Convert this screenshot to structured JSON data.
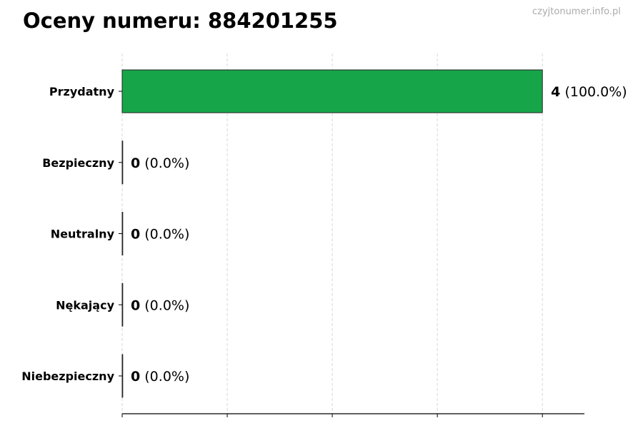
{
  "title": "Oceny numeru: 884201255",
  "watermark": "czyjtonumer.info.pl",
  "chart_data": {
    "type": "bar",
    "orientation": "horizontal",
    "title": "Oceny numeru: 884201255",
    "categories": [
      "Przydatny",
      "Bezpieczny",
      "Neutralny",
      "Nękający",
      "Niebezpieczny"
    ],
    "values": [
      4,
      0,
      0,
      0,
      0
    ],
    "data_labels": [
      {
        "count": "4",
        "percent": "(100.0%)"
      },
      {
        "count": "0",
        "percent": "(0.0%)"
      },
      {
        "count": "0",
        "percent": "(0.0%)"
      },
      {
        "count": "0",
        "percent": "(0.0%)"
      },
      {
        "count": "0",
        "percent": "(0.0%)"
      }
    ],
    "colors": [
      "#17a54a",
      "#17a54a",
      "#17a54a",
      "#17a54a",
      "#17a54a"
    ],
    "xlabel": "",
    "ylabel": "",
    "xlim": [
      0,
      4.4
    ],
    "xticks": [
      0,
      1,
      2,
      3,
      4
    ],
    "x_tick_labels_shown": false,
    "grid": "vertical dashed",
    "legend": "none"
  }
}
